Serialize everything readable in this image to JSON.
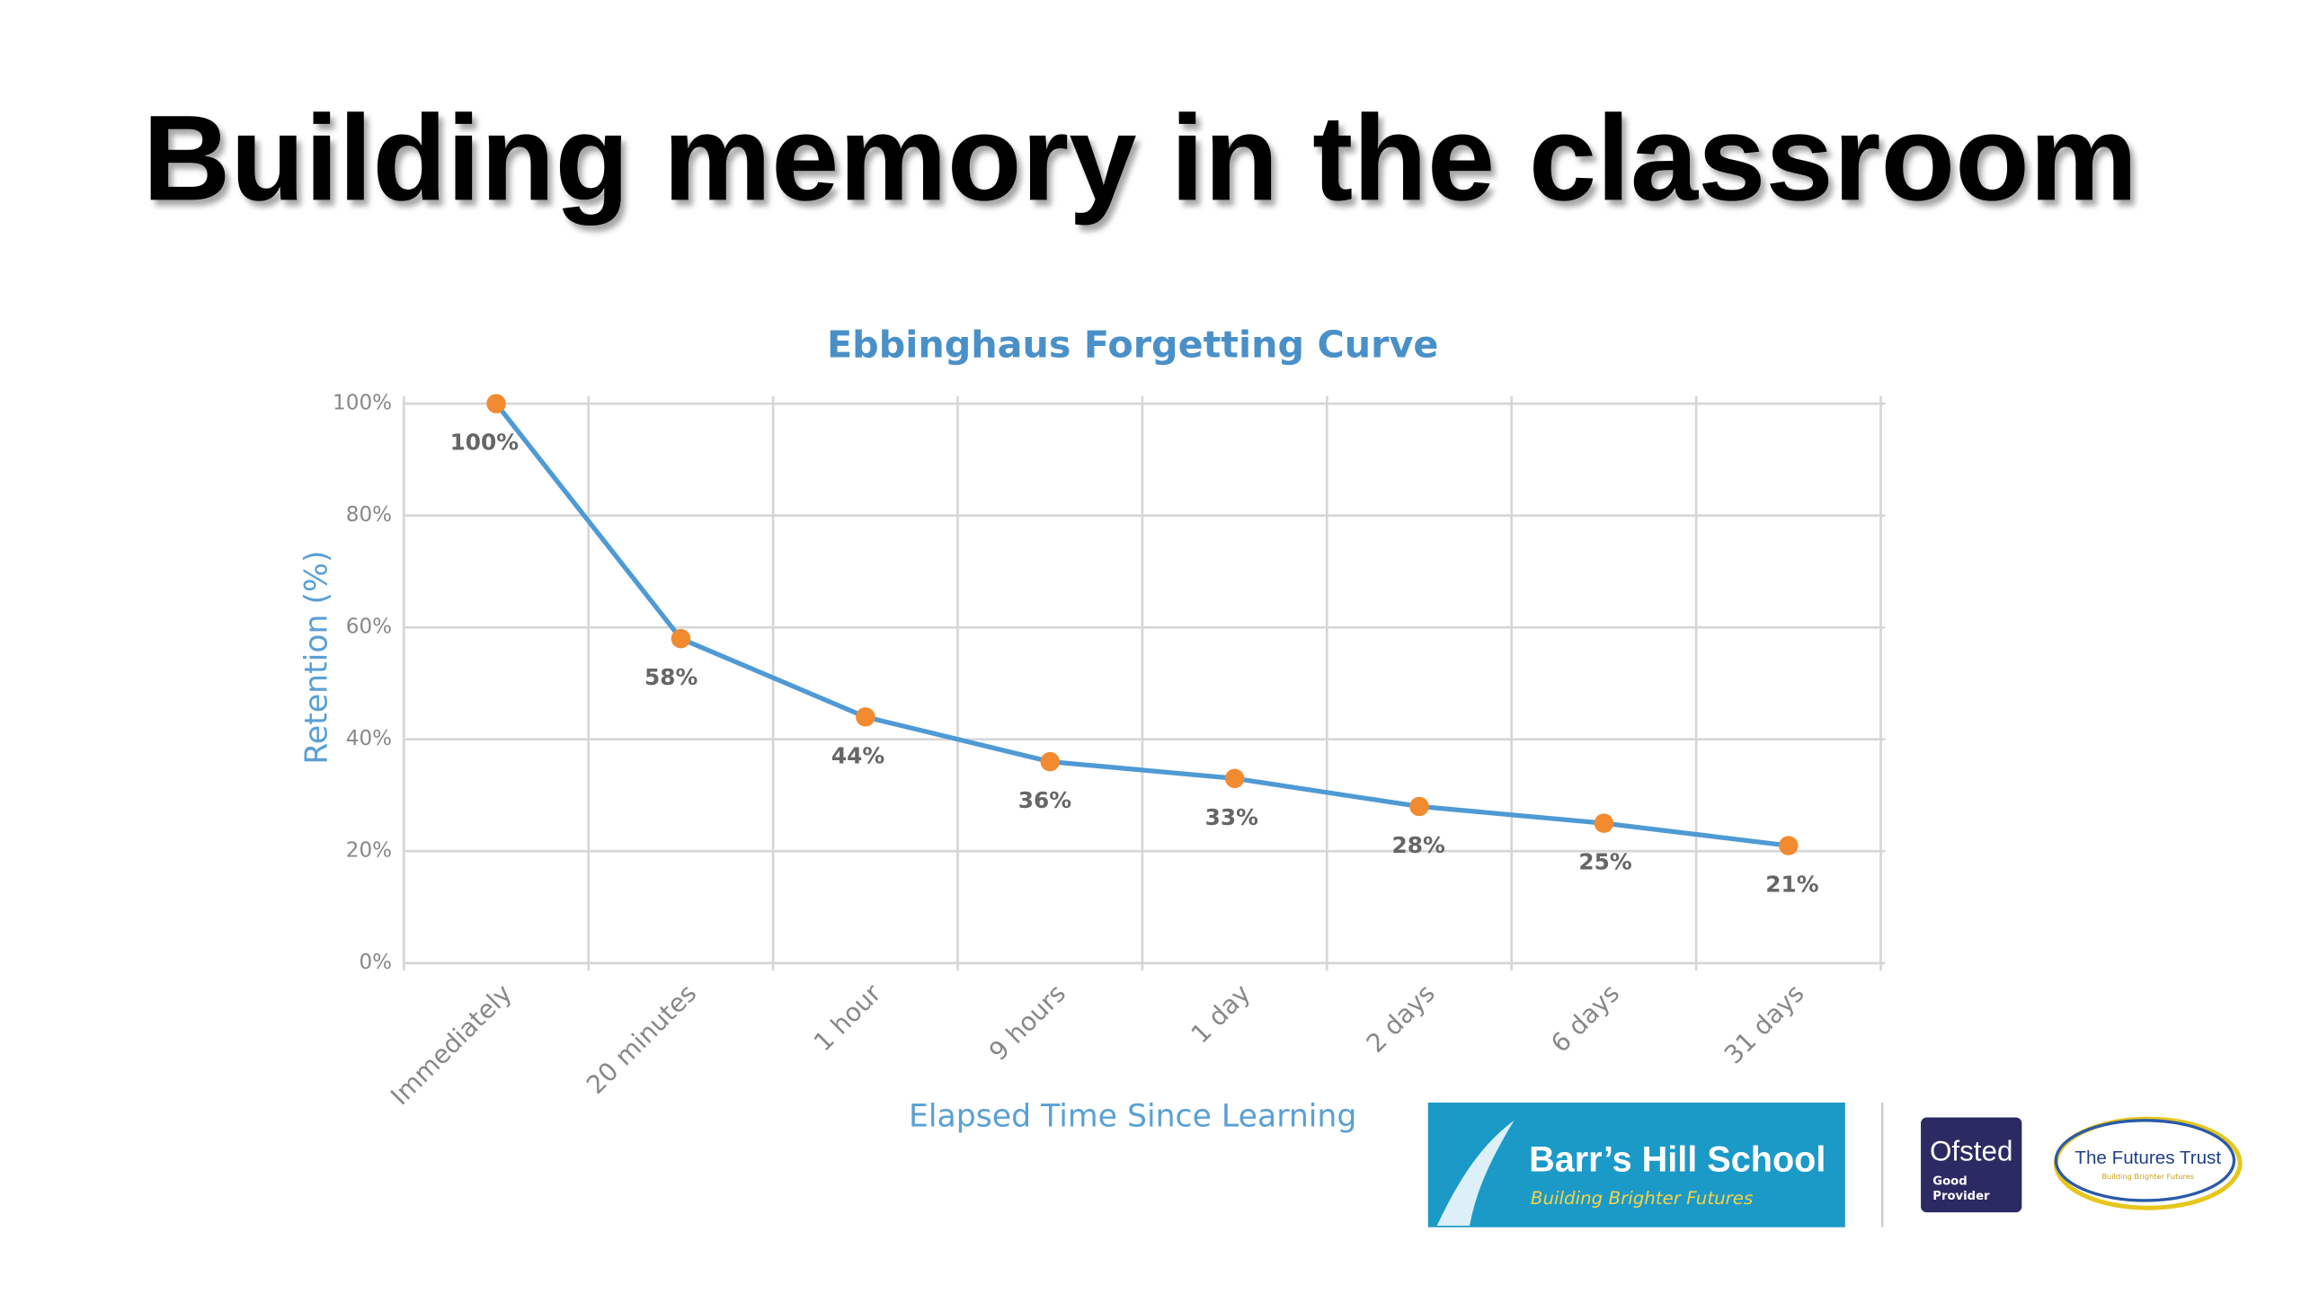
{
  "slide": {
    "title": "Building memory in the classroom"
  },
  "chart_data": {
    "type": "line",
    "title": "Ebbinghaus Forgetting Curve",
    "x_label": "Elapsed Time Since Learning",
    "y_label": "Retention (%)",
    "categories": [
      "Immediately",
      "20 minutes",
      "1 hour",
      "9 hours",
      "1 day",
      "2 days",
      "6 days",
      "31 days"
    ],
    "values": [
      100,
      58,
      44,
      36,
      33,
      28,
      25,
      21
    ],
    "value_labels": [
      "100%",
      "58%",
      "44%",
      "36%",
      "33%",
      "28%",
      "25%",
      "21%"
    ],
    "color": "#4e9ad4",
    "marker_color": "#f28a30",
    "ylim": [
      0,
      100
    ],
    "yticks": [
      {
        "value": 0,
        "label": "0%"
      },
      {
        "value": 20,
        "label": "20%"
      },
      {
        "value": 40,
        "label": "40%"
      },
      {
        "value": 60,
        "label": "60%"
      },
      {
        "value": 80,
        "label": "80%"
      },
      {
        "value": 100,
        "label": "100%"
      }
    ],
    "grid": true
  },
  "footer": {
    "school": "Barr’s Hill School",
    "school_tagline": "Building Brighter Futures",
    "ofsted": "Ofsted",
    "ofsted_grade_1": "Good",
    "ofsted_grade_2": "Provider",
    "trust": "The Futures Trust",
    "trust_tagline": "Building Brighter Futures"
  }
}
